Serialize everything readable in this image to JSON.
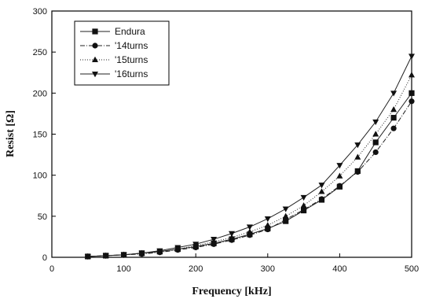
{
  "chart_data": {
    "type": "line",
    "title": "",
    "xlabel": "Frequency [kHz]",
    "ylabel": "Resist [Ω]",
    "xlim": [
      0,
      500
    ],
    "ylim": [
      0,
      300
    ],
    "xticks": [
      0,
      100,
      200,
      300,
      400,
      500
    ],
    "yticks": [
      0,
      50,
      100,
      150,
      200,
      250,
      300
    ],
    "grid": false,
    "legend_position": "top-left",
    "series": [
      {
        "name": "Endura",
        "marker": "square",
        "line_style": "solid",
        "x": [
          50,
          75,
          100,
          125,
          150,
          175,
          200,
          225,
          250,
          275,
          300,
          325,
          350,
          375,
          400,
          425,
          450,
          475,
          500
        ],
        "y": [
          1,
          2,
          3,
          5,
          7,
          10,
          13,
          17,
          22,
          28,
          35,
          44,
          57,
          70,
          86,
          105,
          140,
          170,
          200
        ]
      },
      {
        "name": "'14turns",
        "marker": "circle",
        "line_style": "dash-dot",
        "x": [
          50,
          75,
          100,
          125,
          150,
          175,
          200,
          225,
          250,
          275,
          300,
          325,
          350,
          375,
          400,
          425,
          450,
          475,
          500
        ],
        "y": [
          1,
          2,
          3,
          4,
          6,
          9,
          12,
          16,
          21,
          27,
          34,
          46,
          58,
          71,
          87,
          104,
          128,
          157,
          190
        ]
      },
      {
        "name": "'15turns",
        "marker": "triangle-up",
        "line_style": "dotted",
        "x": [
          50,
          75,
          100,
          125,
          150,
          175,
          200,
          225,
          250,
          275,
          300,
          325,
          350,
          375,
          400,
          425,
          450,
          475,
          500
        ],
        "y": [
          1,
          2,
          3,
          5,
          7,
          10,
          14,
          19,
          24,
          31,
          39,
          50,
          63,
          80,
          99,
          122,
          150,
          180,
          222
        ]
      },
      {
        "name": "'16turns",
        "marker": "triangle-down",
        "line_style": "solid",
        "x": [
          50,
          75,
          100,
          125,
          150,
          175,
          200,
          225,
          250,
          275,
          300,
          325,
          350,
          375,
          400,
          425,
          450,
          475,
          500
        ],
        "y": [
          1,
          2,
          3,
          5,
          8,
          12,
          16,
          22,
          29,
          37,
          47,
          59,
          73,
          88,
          112,
          137,
          165,
          200,
          245
        ]
      }
    ]
  }
}
